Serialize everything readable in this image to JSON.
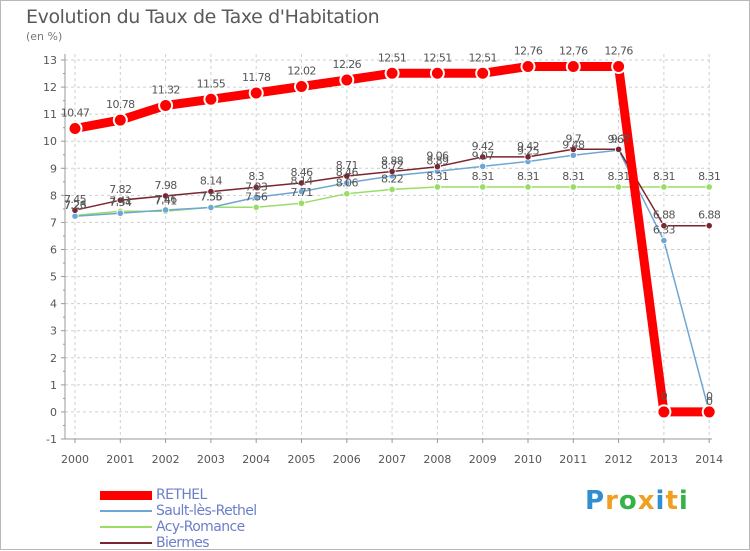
{
  "chart_data": {
    "type": "line",
    "title": "Evolution du Taux de Taxe d'Habitation",
    "subtitle": "(en %)",
    "xlabel": "",
    "ylabel": "(en %)",
    "x": [
      "2000",
      "2001",
      "2002",
      "2003",
      "2004",
      "2005",
      "2006",
      "2007",
      "2008",
      "2009",
      "2010",
      "2011",
      "2012",
      "2013",
      "2014"
    ],
    "ylim": [
      -1,
      13
    ],
    "yticks": [
      "-1",
      "0",
      "1",
      "2",
      "3",
      "4",
      "5",
      "6",
      "7",
      "8",
      "9",
      "10",
      "11",
      "12",
      "13"
    ],
    "series": [
      {
        "name": "RETHEL",
        "color": "#ff0000",
        "values": [
          10.47,
          10.78,
          11.32,
          11.55,
          11.78,
          12.02,
          12.26,
          12.51,
          12.51,
          12.51,
          12.76,
          12.76,
          12.76,
          0,
          0
        ],
        "labels": [
          "10.47",
          "10.78",
          "11.32",
          "11.55",
          "11.78",
          "12.02",
          "12.26",
          "12.51",
          "12.51",
          "12.51",
          "12.76",
          "12.76",
          "12.76",
          "0",
          "0"
        ]
      },
      {
        "name": "Sault-lès-Rethel",
        "color": "#6ea6d4",
        "values": [
          7.23,
          7.34,
          7.46,
          7.55,
          7.93,
          8.14,
          8.46,
          8.72,
          8.89,
          9.07,
          9.25,
          9.48,
          9.67,
          6.33,
          0
        ],
        "labels": [
          "7.23",
          "7.34",
          "7.46",
          "7.55",
          "7.93",
          "8.14",
          "8.46",
          "8.72",
          "8.89",
          "9.07",
          "9.25",
          "9.48",
          "9.67",
          "6.33",
          "0"
        ]
      },
      {
        "name": "Acy-Romance",
        "color": "#99dd66",
        "values": [
          7.26,
          7.41,
          7.41,
          7.56,
          7.56,
          7.71,
          8.06,
          8.22,
          8.31,
          8.31,
          8.31,
          8.31,
          8.31,
          8.31,
          8.31
        ],
        "labels": [
          "7.26",
          "7.41",
          "7.41",
          "7.56",
          "7.56",
          "7.71",
          "8.06",
          "8.22",
          "8.31",
          "8.31",
          "8.31",
          "8.31",
          "8.31",
          "8.31",
          "8.31"
        ]
      },
      {
        "name": "Biermes",
        "color": "#7a2530",
        "values": [
          7.45,
          7.82,
          7.98,
          8.14,
          8.3,
          8.46,
          8.71,
          8.88,
          9.06,
          9.42,
          9.42,
          9.7,
          9.7,
          6.88,
          6.88
        ],
        "labels": [
          "7.45",
          "7.82",
          "7.98",
          "8.14",
          "8.3",
          "8.46",
          "8.71",
          "8.88",
          "9.06",
          "9.42",
          "9.42",
          "9.7",
          "9.7",
          "6.88",
          "6.88"
        ]
      }
    ]
  },
  "legend": [
    {
      "name": "RETHEL",
      "color": "#ff0000",
      "thickness": 9
    },
    {
      "name": "Sault-lès-Rethel",
      "color": "#6ea6d4",
      "thickness": 2
    },
    {
      "name": "Acy-Romance",
      "color": "#99dd66",
      "thickness": 2
    },
    {
      "name": "Biermes",
      "color": "#7a2530",
      "thickness": 2
    }
  ],
  "brand": {
    "letters": [
      "P",
      "r",
      "o",
      "x",
      "i",
      "t",
      "i"
    ],
    "colors": [
      "#2f8fd0",
      "#f0a020",
      "#35b34a",
      "#f0a020",
      "#2f8fd0",
      "#f0a020",
      "#35b34a"
    ]
  }
}
